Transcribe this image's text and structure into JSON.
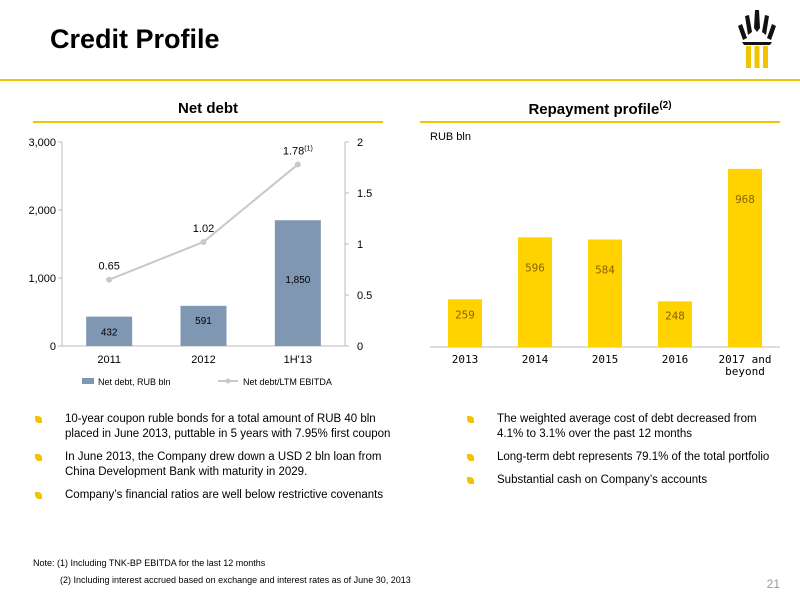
{
  "header": {
    "title": "Credit Profile"
  },
  "net_debt_heading": "Net debt",
  "repayment_heading": "Repayment profile",
  "repayment_heading_sup": "(2)",
  "repayment_unit": "RUB bln",
  "colors": {
    "accent": "#f2c400",
    "bar_blue": "#8097b3",
    "line_grey": "#c8c8c8",
    "repay_bar": "#ffd200",
    "repay_label": "#8a6400"
  },
  "chart_data": [
    {
      "type": "bar",
      "title": "Net debt",
      "categories": [
        "2011",
        "2012",
        "1H'13"
      ],
      "series": [
        {
          "name": "Net debt, RUB bln",
          "type": "bar",
          "axis": "left",
          "values": [
            432,
            591,
            1850
          ],
          "labels": [
            "432",
            "591",
            "1,850"
          ]
        },
        {
          "name": "Net debt/LTM EBITDA",
          "type": "line",
          "axis": "right",
          "values": [
            0.65,
            1.02,
            1.78
          ],
          "labels": [
            "0.65",
            "1.02",
            "1.78"
          ],
          "label_sup": [
            "",
            "",
            "(1)"
          ]
        }
      ],
      "y_left": {
        "lim": [
          0,
          3000
        ],
        "ticks": [
          0,
          1000,
          2000,
          3000
        ],
        "tick_labels": [
          "0",
          "1,000",
          "2,000",
          "3,000"
        ]
      },
      "y_right": {
        "lim": [
          0,
          2
        ],
        "ticks": [
          0,
          0.5,
          1,
          1.5,
          2
        ],
        "tick_labels": [
          "0",
          "0.5",
          "1",
          "1.5",
          "2"
        ]
      },
      "legend": "bottom",
      "grid": false
    },
    {
      "type": "bar",
      "title": "Repayment profile",
      "ylabel": "RUB bln",
      "categories": [
        "2013",
        "2014",
        "2015",
        "2016",
        "2017 and beyond"
      ],
      "category_lines": [
        [
          "2013"
        ],
        [
          "2014"
        ],
        [
          "2015"
        ],
        [
          "2016"
        ],
        [
          "2017 and",
          "beyond"
        ]
      ],
      "values": [
        259,
        596,
        584,
        248,
        968
      ],
      "labels": [
        "259",
        "596",
        "584",
        "248",
        "968"
      ],
      "ylim": [
        0,
        1000
      ],
      "grid": false
    }
  ],
  "left_bullets": [
    "10-year coupon ruble bonds for a total amount of RUB 40 bln placed in June 2013, puttable in 5 years with 7.95% first coupon",
    "In June 2013, the Company drew down a USD 2 bln loan from China Development Bank with maturity in 2029.",
    "Company’s financial ratios are well below  restrictive covenants"
  ],
  "right_bullets": [
    "The weighted average cost of debt decreased from 4.1% to 3.1% over the past 12 months",
    "Long-term debt represents 79.1% of the total portfolio",
    "Substantial cash on Company’s accounts"
  ],
  "notes": {
    "note1": "Note: (1) Including TNK-BP EBITDA for the last 12 months",
    "note2": "(2) Including interest  accrued based on  exchange and  interest rates as of June 30, 2013"
  },
  "page_number": "21"
}
